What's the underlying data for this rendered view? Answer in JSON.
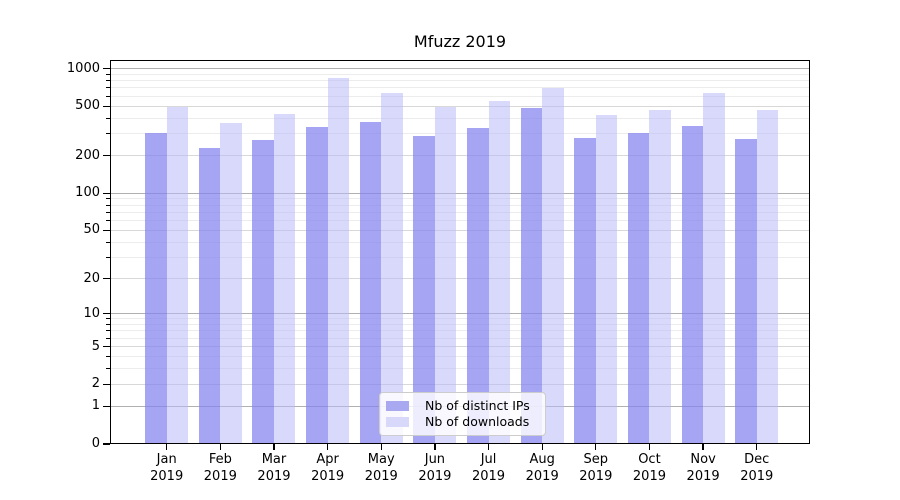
{
  "title": "Mfuzz 2019",
  "chart_data": {
    "type": "bar",
    "title": "Mfuzz 2019",
    "x_year": "2019",
    "categories": [
      "Jan",
      "Feb",
      "Mar",
      "Apr",
      "May",
      "Jun",
      "Jul",
      "Aug",
      "Sep",
      "Oct",
      "Nov",
      "Dec"
    ],
    "series": [
      {
        "name": "Nb of distinct IPs",
        "color": "rgba(130,130,240,0.72)",
        "legend_color": "#a9a9f1",
        "values": [
          306,
          229,
          266,
          338,
          375,
          288,
          336,
          480,
          276,
          303,
          349,
          273
        ]
      },
      {
        "name": "Nb of downloads",
        "color": "rgba(185,185,248,0.55)",
        "legend_color": "#d8d8fa",
        "values": [
          492,
          368,
          435,
          845,
          633,
          495,
          550,
          695,
          425,
          466,
          633,
          466
        ]
      }
    ],
    "y_axis": {
      "scale": "log1p",
      "max": 1170,
      "ticks": [
        0,
        1,
        2,
        5,
        10,
        20,
        50,
        100,
        200,
        500,
        1000
      ],
      "minor_ticks": [
        3,
        4,
        6,
        7,
        8,
        9,
        30,
        40,
        60,
        70,
        80,
        90,
        300,
        400,
        600,
        700,
        800,
        900
      ]
    },
    "grid": {
      "major_color": "#b0b0b0",
      "mid_color": "#d8d8d8",
      "minor_color": "#ececec"
    },
    "legend": {
      "position": "lower center"
    }
  }
}
